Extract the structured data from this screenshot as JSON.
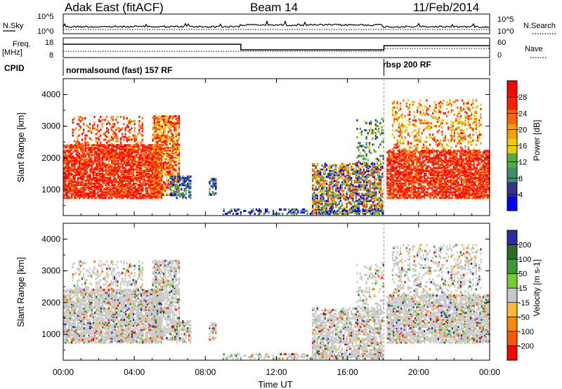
{
  "header": {
    "title_left": "Adak East (fitACF)",
    "title_center": "Beam 14",
    "title_right": "11/Feb/2014"
  },
  "strips": {
    "nsky_label": "N.Sky",
    "nsearch_label": "N.Search",
    "noise_ticks_left": [
      "10^5",
      "10^0"
    ],
    "noise_ticks_right": [
      "10^5",
      "10^0"
    ],
    "freq_label": "Freq.",
    "freq_unit": "[MHz]",
    "freq_ticks": [
      "18",
      "8"
    ],
    "nave_label": "Nave",
    "nave_ticks": [
      "60",
      "0"
    ],
    "cpid_label": "CPID",
    "cpid_segments": [
      {
        "label": "normalsound (fast) 157 RF",
        "start_hour": 0.0
      },
      {
        "label": "rbsp 200 RF",
        "start_hour": 18.05
      }
    ]
  },
  "colors": {
    "power_scale": [
      "#0000ff",
      "#33338f",
      "#3d8f6a",
      "#55aa44",
      "#e6d000",
      "#f0a000",
      "#ff6600",
      "#ff2000",
      "#ff0000"
    ],
    "velocity_scale": [
      "#2a2aa8",
      "#2a6a2a",
      "#3a9a3a",
      "#77cc33",
      "#c8c8c8",
      "#ffbb33",
      "#ff8800",
      "#ff5500",
      "#ff0000"
    ]
  },
  "chart_data": [
    {
      "type": "heatmap",
      "name": "power",
      "ylabel": "Slant Range [km]",
      "yticks": [
        "1000",
        "2000",
        "3000",
        "4000"
      ],
      "ylim": [
        180,
        4500
      ],
      "xlim_hours": [
        0,
        24
      ],
      "colorbar_label": "Power [dB]",
      "colorbar_ticks": [
        "4",
        "8",
        "12",
        "16",
        "20",
        "24",
        "28"
      ],
      "colorbar_range": [
        0,
        32
      ]
    },
    {
      "type": "heatmap",
      "name": "velocity",
      "ylabel": "Slant Range [km]",
      "yticks": [
        "1000",
        "2000",
        "3000",
        "4000"
      ],
      "ylim": [
        180,
        4500
      ],
      "xlabel": "Time UT",
      "xticks": [
        "00:00",
        "04:00",
        "08:00",
        "12:00",
        "16:00",
        "20:00",
        "00:00"
      ],
      "colorbar_label": "Velocity [m s-1]",
      "colorbar_ticks": [
        "200",
        "100",
        "50",
        "15",
        "-15",
        "-50",
        "-100",
        "-200"
      ]
    }
  ]
}
